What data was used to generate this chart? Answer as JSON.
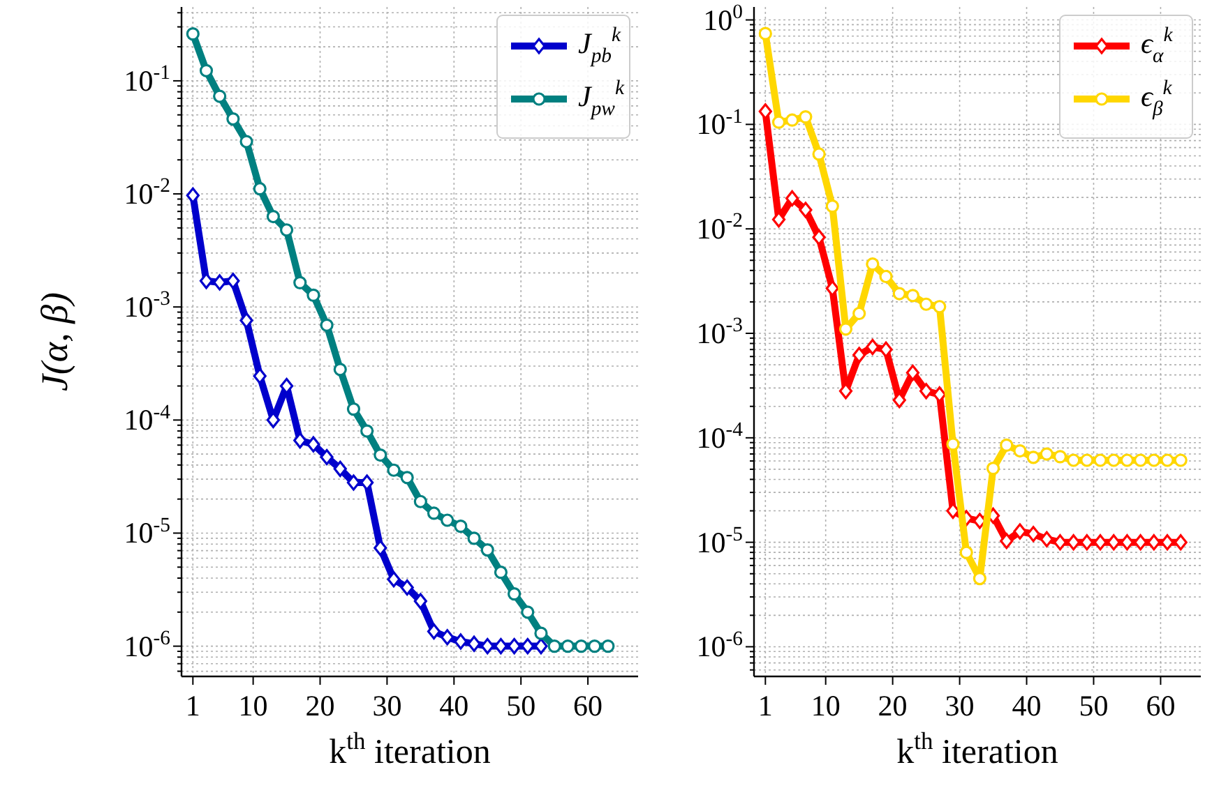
{
  "chart_data": [
    {
      "type": "line",
      "ylabel": "J(α, β)",
      "xlabel": "k$^{th}$ iteration",
      "log": "y",
      "grid": true,
      "legend": "top right",
      "line_style": "solid",
      "xlim": [
        -0.7,
        67.5
      ],
      "xticks": [
        1,
        10,
        20,
        30,
        40,
        50,
        60
      ],
      "ylim": [
        5.4e-07,
        0.45
      ],
      "yticks": [
        {
          "value": 6e-07,
          "label": null
        },
        {
          "value": 7e-07,
          "label": null
        },
        {
          "value": 8e-07,
          "label": null
        },
        {
          "value": 9e-07,
          "label": null
        },
        {
          "value": 1e-06,
          "label": "10$^{-6}$"
        },
        {
          "value": 2e-06,
          "label": null
        },
        {
          "value": 3e-06,
          "label": null
        },
        {
          "value": 4e-06,
          "label": null
        },
        {
          "value": 5e-06,
          "label": null
        },
        {
          "value": 6e-06,
          "label": null
        },
        {
          "value": 7e-06,
          "label": null
        },
        {
          "value": 8e-06,
          "label": null
        },
        {
          "value": 9e-06,
          "label": null
        },
        {
          "value": 1e-05,
          "label": "10$^{-5}$"
        },
        {
          "value": 2e-05,
          "label": null
        },
        {
          "value": 3e-05,
          "label": null
        },
        {
          "value": 4e-05,
          "label": null
        },
        {
          "value": 5e-05,
          "label": null
        },
        {
          "value": 6e-05,
          "label": null
        },
        {
          "value": 7e-05,
          "label": null
        },
        {
          "value": 8e-05,
          "label": null
        },
        {
          "value": 9e-05,
          "label": null
        },
        {
          "value": 0.0001,
          "label": "10$^{-4}$"
        },
        {
          "value": 0.0002,
          "label": null
        },
        {
          "value": 0.0003,
          "label": null
        },
        {
          "value": 0.0004,
          "label": null
        },
        {
          "value": 0.0005,
          "label": null
        },
        {
          "value": 0.0006,
          "label": null
        },
        {
          "value": 0.0007,
          "label": null
        },
        {
          "value": 0.0008,
          "label": null
        },
        {
          "value": 0.0009,
          "label": null
        },
        {
          "value": 0.001,
          "label": "10$^{-3}$"
        },
        {
          "value": 0.002,
          "label": null
        },
        {
          "value": 0.003,
          "label": null
        },
        {
          "value": 0.004,
          "label": null
        },
        {
          "value": 0.005,
          "label": null
        },
        {
          "value": 0.006,
          "label": null
        },
        {
          "value": 0.007,
          "label": null
        },
        {
          "value": 0.008,
          "label": null
        },
        {
          "value": 0.009,
          "label": null
        },
        {
          "value": 0.01,
          "label": "10$^{-2}$"
        },
        {
          "value": 0.02,
          "label": null
        },
        {
          "value": 0.03,
          "label": null
        },
        {
          "value": 0.04,
          "label": null
        },
        {
          "value": 0.05,
          "label": null
        },
        {
          "value": 0.06,
          "label": null
        },
        {
          "value": 0.07,
          "label": null
        },
        {
          "value": 0.08,
          "label": null
        },
        {
          "value": 0.09,
          "label": null
        },
        {
          "value": 0.1,
          "label": "10$^{-1}$"
        },
        {
          "value": 0.2,
          "label": null
        },
        {
          "value": 0.3,
          "label": null
        },
        {
          "value": 0.4,
          "label": null
        }
      ],
      "x": [
        1,
        3,
        5,
        7,
        9,
        11,
        13,
        15,
        17,
        19,
        21,
        23,
        25,
        27,
        29,
        31,
        33,
        35,
        37,
        39,
        41,
        43,
        45,
        47,
        49,
        51,
        53,
        55,
        57,
        59,
        61,
        63
      ],
      "series": [
        {
          "name": "J$_{pb}$$^{k}$",
          "color": "#0000cc",
          "marker": "diamond",
          "values": [
            0.0097,
            0.0017,
            0.00165,
            0.0017,
            0.00076,
            0.000245,
            0.0001,
            0.0002,
            6.6e-05,
            6.1e-05,
            4.7e-05,
            3.7e-05,
            2.8e-05,
            2.8e-05,
            7.4e-06,
            3.9e-06,
            3.3e-06,
            2.5e-06,
            1.35e-06,
            1.2e-06,
            1.1e-06,
            1.05e-06,
            1e-06,
            1e-06,
            1e-06,
            1e-06,
            1e-06,
            null,
            null,
            null,
            null,
            null
          ]
        },
        {
          "name": "J$_{pw}$$^{k}$",
          "color": "#008080",
          "marker": "circle",
          "values": [
            0.26,
            0.123,
            0.073,
            0.046,
            0.029,
            0.0111,
            0.0063,
            0.0048,
            0.00164,
            0.00127,
            0.00069,
            0.00028,
            0.000125,
            8e-05,
            4.9e-05,
            3.6e-05,
            3.1e-05,
            1.9e-05,
            1.5e-05,
            1.3e-05,
            1.15e-05,
            9e-06,
            7.1e-06,
            4.5e-06,
            2.9e-06,
            2e-06,
            1.3e-06,
            1e-06,
            1e-06,
            1e-06,
            1e-06,
            1e-06
          ]
        }
      ]
    },
    {
      "type": "line",
      "xlabel": "k$^{th}$ iteration",
      "log": "y",
      "grid": true,
      "legend": "top right",
      "line_style": "solid",
      "xlim": [
        -0.7,
        66
      ],
      "xticks": [
        1,
        10,
        20,
        30,
        40,
        50,
        60
      ],
      "ylim": [
        5.2e-07,
        1.33
      ],
      "yticks": [
        {
          "value": 6e-07,
          "label": null
        },
        {
          "value": 7e-07,
          "label": null
        },
        {
          "value": 8e-07,
          "label": null
        },
        {
          "value": 9e-07,
          "label": null
        },
        {
          "value": 1e-06,
          "label": "10$^{-6}$"
        },
        {
          "value": 2e-06,
          "label": null
        },
        {
          "value": 3e-06,
          "label": null
        },
        {
          "value": 4e-06,
          "label": null
        },
        {
          "value": 5e-06,
          "label": null
        },
        {
          "value": 6e-06,
          "label": null
        },
        {
          "value": 7e-06,
          "label": null
        },
        {
          "value": 8e-06,
          "label": null
        },
        {
          "value": 9e-06,
          "label": null
        },
        {
          "value": 1e-05,
          "label": "10$^{-5}$"
        },
        {
          "value": 2e-05,
          "label": null
        },
        {
          "value": 3e-05,
          "label": null
        },
        {
          "value": 4e-05,
          "label": null
        },
        {
          "value": 5e-05,
          "label": null
        },
        {
          "value": 6e-05,
          "label": null
        },
        {
          "value": 7e-05,
          "label": null
        },
        {
          "value": 8e-05,
          "label": null
        },
        {
          "value": 9e-05,
          "label": null
        },
        {
          "value": 0.0001,
          "label": "10$^{-4}$"
        },
        {
          "value": 0.0002,
          "label": null
        },
        {
          "value": 0.0003,
          "label": null
        },
        {
          "value": 0.0004,
          "label": null
        },
        {
          "value": 0.0005,
          "label": null
        },
        {
          "value": 0.0006,
          "label": null
        },
        {
          "value": 0.0007,
          "label": null
        },
        {
          "value": 0.0008,
          "label": null
        },
        {
          "value": 0.0009,
          "label": null
        },
        {
          "value": 0.001,
          "label": "10$^{-3}$"
        },
        {
          "value": 0.002,
          "label": null
        },
        {
          "value": 0.003,
          "label": null
        },
        {
          "value": 0.004,
          "label": null
        },
        {
          "value": 0.005,
          "label": null
        },
        {
          "value": 0.006,
          "label": null
        },
        {
          "value": 0.007,
          "label": null
        },
        {
          "value": 0.008,
          "label": null
        },
        {
          "value": 0.009,
          "label": null
        },
        {
          "value": 0.01,
          "label": "10$^{-2}$"
        },
        {
          "value": 0.02,
          "label": null
        },
        {
          "value": 0.03,
          "label": null
        },
        {
          "value": 0.04,
          "label": null
        },
        {
          "value": 0.05,
          "label": null
        },
        {
          "value": 0.06,
          "label": null
        },
        {
          "value": 0.07,
          "label": null
        },
        {
          "value": 0.08,
          "label": null
        },
        {
          "value": 0.09,
          "label": null
        },
        {
          "value": 0.1,
          "label": "10$^{-1}$"
        },
        {
          "value": 0.2,
          "label": null
        },
        {
          "value": 0.3,
          "label": null
        },
        {
          "value": 0.4,
          "label": null
        },
        {
          "value": 0.5,
          "label": null
        },
        {
          "value": 0.6,
          "label": null
        },
        {
          "value": 0.7,
          "label": null
        },
        {
          "value": 0.8,
          "label": null
        },
        {
          "value": 0.9,
          "label": null
        },
        {
          "value": 1,
          "label": "10$^{0}$"
        }
      ],
      "x": [
        1,
        3,
        5,
        7,
        9,
        11,
        13,
        15,
        17,
        19,
        21,
        23,
        25,
        27,
        29,
        31,
        33,
        35,
        37,
        39,
        41,
        43,
        45,
        47,
        49,
        51,
        53,
        55,
        57,
        59,
        61,
        63
      ],
      "series": [
        {
          "name": "ϵ$_{α}$$^{k}$",
          "color": "#ff0000",
          "marker": "diamond",
          "values": [
            0.133,
            0.0123,
            0.0196,
            0.0152,
            0.0083,
            0.0027,
            0.00028,
            0.00062,
            0.00074,
            0.0007,
            0.00023,
            0.00042,
            0.00028,
            0.00026,
            2e-05,
            1.7e-05,
            1.6e-05,
            1.8e-05,
            1.03e-05,
            1.27e-05,
            1.2e-05,
            1.07e-05,
            1e-05,
            1e-05,
            1e-05,
            1e-05,
            1e-05,
            1e-05,
            1e-05,
            1e-05,
            1e-05,
            1e-05
          ]
        },
        {
          "name": "ϵ$_{β}$$^{k}$",
          "color": "#ffd700",
          "marker": "circle",
          "values": [
            0.74,
            0.105,
            0.11,
            0.118,
            0.052,
            0.0165,
            0.0011,
            0.00155,
            0.0046,
            0.0035,
            0.0024,
            0.0023,
            0.0019,
            0.0018,
            8.7e-05,
            8e-06,
            4.5e-06,
            5.1e-05,
            8.5e-05,
            7.5e-05,
            6.5e-05,
            7e-05,
            6.6e-05,
            6.1e-05,
            6.1e-05,
            6.1e-05,
            6.1e-05,
            6.1e-05,
            6.1e-05,
            6.1e-05,
            6.1e-05,
            6.1e-05
          ]
        }
      ]
    }
  ]
}
